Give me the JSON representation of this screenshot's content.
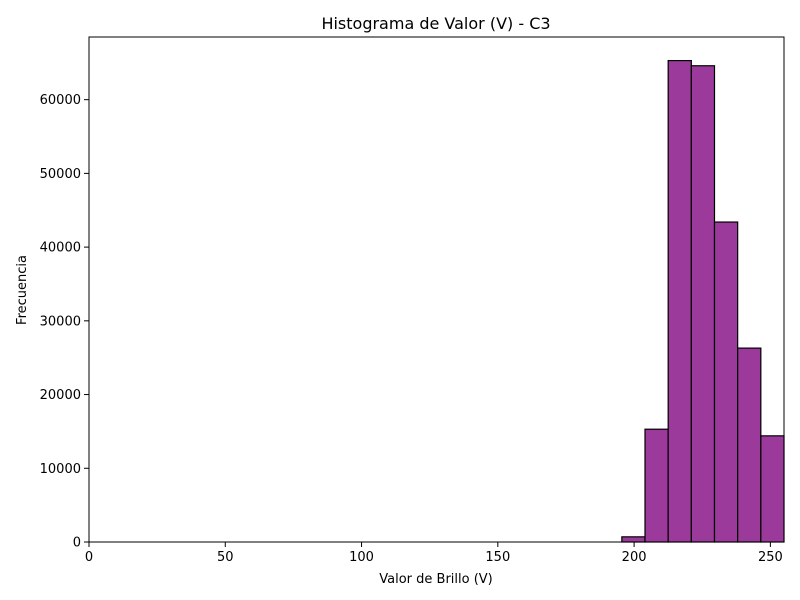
{
  "chart_data": {
    "type": "bar",
    "title": "Histograma de Valor (V) - C3",
    "xlabel": "Valor de Brillo (V)",
    "ylabel": "Frecuencia",
    "xlim": [
      0,
      255
    ],
    "ylim": [
      0,
      68500
    ],
    "grid": false,
    "bins": [
      {
        "x0": 195.5,
        "x1": 204.0,
        "value": 700
      },
      {
        "x0": 204.0,
        "x1": 212.5,
        "value": 15300
      },
      {
        "x0": 212.5,
        "x1": 221.0,
        "value": 65300
      },
      {
        "x0": 221.0,
        "x1": 229.5,
        "value": 64600
      },
      {
        "x0": 229.5,
        "x1": 238.0,
        "value": 43400
      },
      {
        "x0": 238.0,
        "x1": 246.5,
        "value": 26300
      },
      {
        "x0": 246.5,
        "x1": 255.0,
        "value": 14400
      }
    ],
    "bar_color": "#9b3a9b",
    "edge_color": "#000000",
    "x_ticks": [
      {
        "value": 0,
        "label": "0"
      },
      {
        "value": 50,
        "label": "50"
      },
      {
        "value": 100,
        "label": "100"
      },
      {
        "value": 150,
        "label": "150"
      },
      {
        "value": 200,
        "label": "200"
      },
      {
        "value": 250,
        "label": "250"
      }
    ],
    "y_ticks": [
      {
        "value": 0,
        "label": "0"
      },
      {
        "value": 10000,
        "label": "10000"
      },
      {
        "value": 20000,
        "label": "20000"
      },
      {
        "value": 30000,
        "label": "30000"
      },
      {
        "value": 40000,
        "label": "40000"
      },
      {
        "value": 50000,
        "label": "50000"
      },
      {
        "value": 60000,
        "label": "60000"
      }
    ]
  }
}
